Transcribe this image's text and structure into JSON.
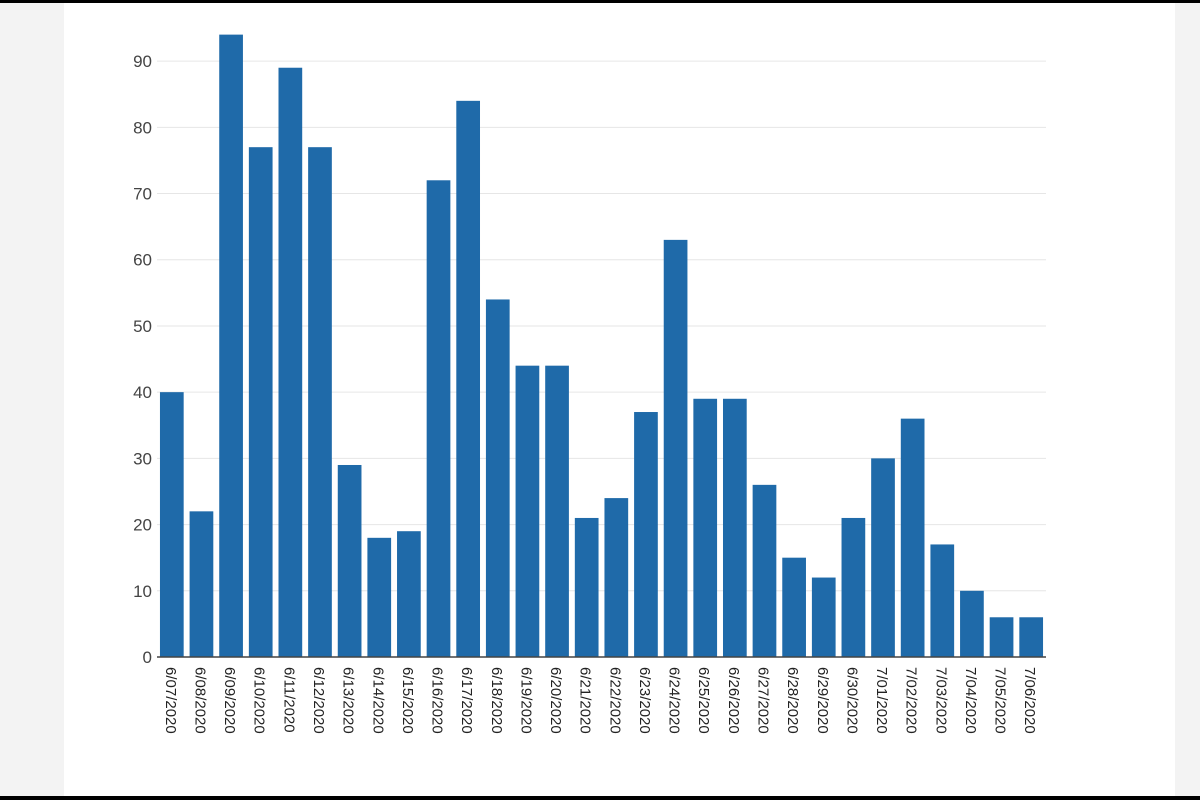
{
  "chart_data": {
    "type": "bar",
    "title": "",
    "xlabel": "",
    "ylabel": "",
    "ylim": [
      0,
      95
    ],
    "y_ticks": [
      0,
      10,
      20,
      30,
      40,
      50,
      60,
      70,
      80,
      90
    ],
    "grid": true,
    "legend": "none",
    "bar_color": "#1f6aa9",
    "categories": [
      "6/07/2020",
      "6/08/2020",
      "6/09/2020",
      "6/10/2020",
      "6/11/2020",
      "6/12/2020",
      "6/13/2020",
      "6/14/2020",
      "6/15/2020",
      "6/16/2020",
      "6/17/2020",
      "6/18/2020",
      "6/19/2020",
      "6/20/2020",
      "6/21/2020",
      "6/22/2020",
      "6/23/2020",
      "6/24/2020",
      "6/25/2020",
      "6/26/2020",
      "6/27/2020",
      "6/28/2020",
      "6/29/2020",
      "6/30/2020",
      "7/01/2020",
      "7/02/2020",
      "7/03/2020",
      "7/04/2020",
      "7/05/2020",
      "7/06/2020"
    ],
    "values": [
      40,
      22,
      94,
      77,
      89,
      77,
      29,
      18,
      19,
      72,
      84,
      54,
      44,
      44,
      21,
      24,
      37,
      63,
      39,
      39,
      26,
      15,
      12,
      21,
      30,
      36,
      17,
      10,
      6,
      6
    ]
  }
}
